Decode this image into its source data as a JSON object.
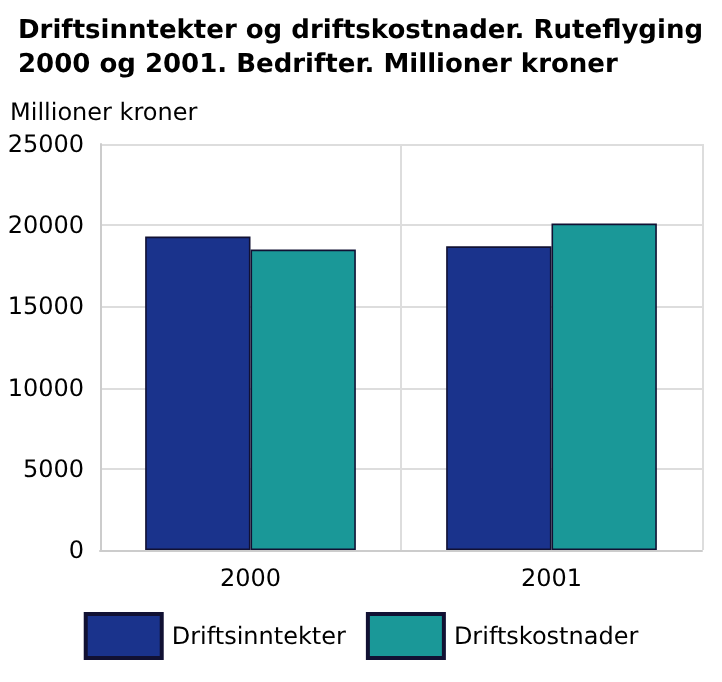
{
  "chart_data": {
    "type": "bar",
    "title": "Driftsinntekter og driftskostnader. Ruteflyging 2000 og 2001. Bedrifter. Millioner kroner",
    "ylabel": "Millioner kroner",
    "categories": [
      "2000",
      "2001"
    ],
    "series": [
      {
        "name": "Driftsinntekter",
        "color": "#1a338c",
        "values": [
          19300,
          18700
        ]
      },
      {
        "name": "Driftskostnader",
        "color": "#1a9898",
        "values": [
          18500,
          20100
        ]
      }
    ],
    "ylim": [
      0,
      25000
    ],
    "yticks": [
      0,
      5000,
      10000,
      15000,
      20000,
      25000
    ],
    "grid": true,
    "legend": "bottom"
  }
}
